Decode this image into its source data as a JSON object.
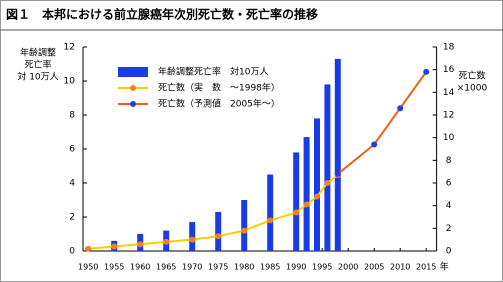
{
  "chart_data": {
    "type": "bar",
    "title": "図１　本邦における前立腺癌年次別死亡数・死亡率の推移",
    "y_label": [
      "年齢調整",
      "死亡率",
      "対 10万人"
    ],
    "y2_label": [
      "死亡数",
      "×1000"
    ],
    "x_unit": "年",
    "xlim": [
      1949,
      2017
    ],
    "xticks": [
      1950,
      1955,
      1960,
      1965,
      1970,
      1975,
      1980,
      1985,
      1990,
      1995,
      2000,
      2005,
      2010,
      2015
    ],
    "ylim": [
      0,
      12
    ],
    "yticks": [
      0,
      2,
      4,
      6,
      8,
      10,
      12
    ],
    "y2lim": [
      0,
      18
    ],
    "y2ticks": [
      0,
      2,
      4,
      6,
      8,
      10,
      12,
      14,
      16,
      18
    ],
    "series": [
      {
        "name": "年齢調整死亡率　対10万人",
        "type": "bar",
        "color": "#1a3ce6",
        "x": [
          1950,
          1955,
          1960,
          1965,
          1970,
          1975,
          1980,
          1985,
          1990,
          1992,
          1994,
          1996,
          1998
        ],
        "values": [
          0.2,
          0.6,
          1.0,
          1.2,
          1.7,
          2.3,
          3.0,
          4.5,
          5.8,
          6.7,
          7.8,
          9.8,
          11.3
        ]
      },
      {
        "name": "死亡数（実　数　～1998年）",
        "type": "line",
        "axis": "y2",
        "color": "#f5d000",
        "marker_color": "#f08020",
        "x": [
          1950,
          1955,
          1960,
          1965,
          1970,
          1975,
          1980,
          1985,
          1990,
          1992,
          1994,
          1996,
          1998
        ],
        "values": [
          0.2,
          0.4,
          0.6,
          0.8,
          1.0,
          1.3,
          1.8,
          2.7,
          3.4,
          4.1,
          4.8,
          6.0,
          6.7
        ]
      },
      {
        "name": "死亡数（予測値　2005年～）",
        "type": "line",
        "axis": "y2",
        "color": "#f06010",
        "marker_color": "#1e40e0",
        "x": [
          1998,
          2005,
          2010,
          2015
        ],
        "values": [
          6.8,
          9.4,
          12.6,
          15.8
        ]
      }
    ]
  }
}
